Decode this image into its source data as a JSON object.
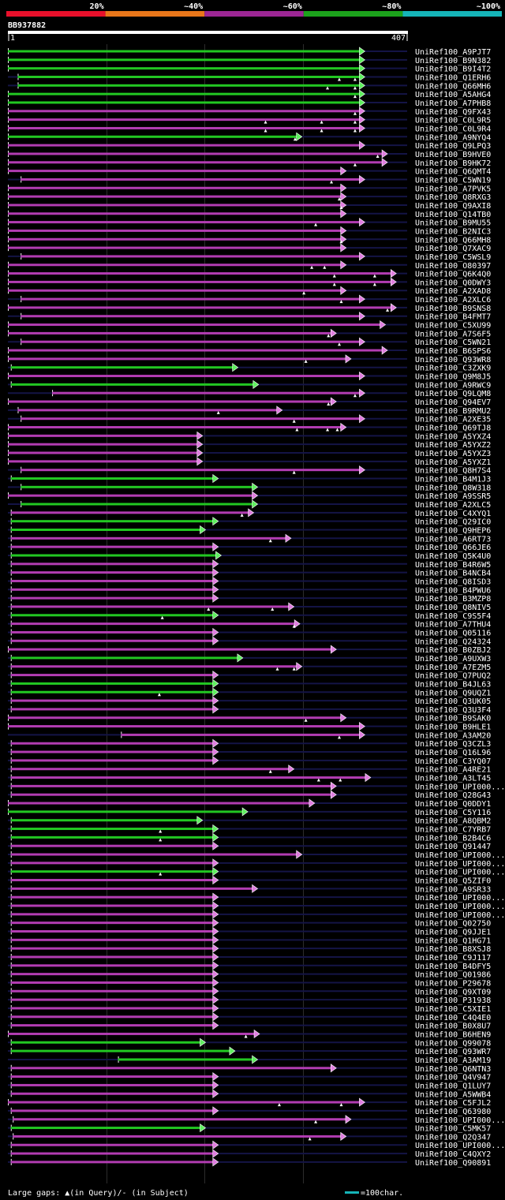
{
  "chart_data": {
    "type": "alignment-overview",
    "query_id": "BB937882",
    "query_start": "1",
    "query_end": "407",
    "query_length": 407,
    "legend": {
      "bands": [
        {
          "label": "20%",
          "color": "#e8102b"
        },
        {
          "label": "~40%",
          "color": "#e8761a"
        },
        {
          "label": "~60%",
          "color": "#9c2694"
        },
        {
          "label": "~80%",
          "color": "#1ca21c"
        },
        {
          "label": "~100%",
          "color": "#15b4b8"
        }
      ],
      "gap_note": "Large gaps: ▲(in Query)/- (in Subject)",
      "scale_note": "=100char.",
      "scale_color": "#15b4b8"
    },
    "hits": [
      {
        "id": "UniRef100_A9PJT7",
        "start": 1,
        "end": 364,
        "tier": "green",
        "gaps": []
      },
      {
        "id": "UniRef100_B9N382",
        "start": 1,
        "end": 364,
        "tier": "green",
        "gaps": []
      },
      {
        "id": "UniRef100_B9I4T2",
        "start": 1,
        "end": 364,
        "tier": "green",
        "gaps": []
      },
      {
        "id": "UniRef100_Q1ERH6",
        "start": 11,
        "end": 364,
        "tier": "green",
        "gaps": [
          338,
          354
        ]
      },
      {
        "id": "UniRef100_Q66MH6",
        "start": 11,
        "end": 364,
        "tier": "green",
        "gaps": [
          326,
          354
        ]
      },
      {
        "id": "UniRef100_A5AHG4",
        "start": 1,
        "end": 364,
        "tier": "green",
        "gaps": [
          354
        ]
      },
      {
        "id": "UniRef100_A7PHB8",
        "start": 1,
        "end": 364,
        "tier": "green",
        "gaps": []
      },
      {
        "id": "UniRef100_Q9FX43",
        "start": 1,
        "end": 364,
        "tier": "purple",
        "gaps": [
          354
        ]
      },
      {
        "id": "UniRef100_C0L9R5",
        "start": 1,
        "end": 364,
        "tier": "purple",
        "gaps": [
          263,
          320,
          354
        ]
      },
      {
        "id": "UniRef100_C0L9R4",
        "start": 1,
        "end": 364,
        "tier": "purple",
        "gaps": [
          263,
          320,
          354
        ]
      },
      {
        "id": "UniRef100_A9NYQ4",
        "start": 1,
        "end": 300,
        "tier": "green",
        "gaps": [
          293
        ]
      },
      {
        "id": "UniRef100_Q9LPQ3",
        "start": 1,
        "end": 364,
        "tier": "purple",
        "gaps": []
      },
      {
        "id": "UniRef100_B9HVE0",
        "start": 1,
        "end": 387,
        "tier": "purple",
        "gaps": [
          377
        ]
      },
      {
        "id": "UniRef100_B9HK72",
        "start": 1,
        "end": 387,
        "tier": "purple",
        "gaps": [
          354
        ]
      },
      {
        "id": "UniRef100_Q6QMT4",
        "start": 1,
        "end": 345,
        "tier": "purple",
        "gaps": []
      },
      {
        "id": "UniRef100_C5WN19",
        "start": 14,
        "end": 364,
        "tier": "purple",
        "gaps": [
          330
        ]
      },
      {
        "id": "UniRef100_A7PVK5",
        "start": 1,
        "end": 345,
        "tier": "purple",
        "gaps": []
      },
      {
        "id": "UniRef100_Q8RXG3",
        "start": 1,
        "end": 345,
        "tier": "purple",
        "gaps": [
          338
        ]
      },
      {
        "id": "UniRef100_Q9AXI8",
        "start": 1,
        "end": 345,
        "tier": "purple",
        "gaps": [
          340
        ]
      },
      {
        "id": "UniRef100_Q14TB0",
        "start": 1,
        "end": 345,
        "tier": "purple",
        "gaps": []
      },
      {
        "id": "UniRef100_B9MU55",
        "start": 1,
        "end": 364,
        "tier": "purple",
        "gaps": [
          314
        ]
      },
      {
        "id": "UniRef100_B2NIC3",
        "start": 1,
        "end": 345,
        "tier": "purple",
        "gaps": []
      },
      {
        "id": "UniRef100_Q66MH8",
        "start": 1,
        "end": 345,
        "tier": "purple",
        "gaps": [
          340
        ]
      },
      {
        "id": "UniRef100_Q7XAC9",
        "start": 1,
        "end": 345,
        "tier": "purple",
        "gaps": []
      },
      {
        "id": "UniRef100_C5WSL9",
        "start": 14,
        "end": 364,
        "tier": "purple",
        "gaps": []
      },
      {
        "id": "UniRef100_O80397",
        "start": 1,
        "end": 345,
        "tier": "purple",
        "gaps": [
          310,
          323
        ]
      },
      {
        "id": "UniRef100_Q6K4Q0",
        "start": 1,
        "end": 396,
        "tier": "purple",
        "gaps": [
          333,
          374
        ]
      },
      {
        "id": "UniRef100_Q0DWY3",
        "start": 1,
        "end": 396,
        "tier": "purple",
        "gaps": [
          333,
          374
        ]
      },
      {
        "id": "UniRef100_A2XAD8",
        "start": 1,
        "end": 345,
        "tier": "purple",
        "gaps": [
          302
        ]
      },
      {
        "id": "UniRef100_A2XLC6",
        "start": 14,
        "end": 364,
        "tier": "purple",
        "gaps": [
          340
        ]
      },
      {
        "id": "UniRef100_B9SNS8",
        "start": 1,
        "end": 396,
        "tier": "purple",
        "gaps": [
          387
        ]
      },
      {
        "id": "UniRef100_B4FMT7",
        "start": 14,
        "end": 364,
        "tier": "purple",
        "gaps": []
      },
      {
        "id": "UniRef100_C5XU99",
        "start": 1,
        "end": 385,
        "tier": "purple",
        "gaps": []
      },
      {
        "id": "UniRef100_A7S6F5",
        "start": 1,
        "end": 335,
        "tier": "purple",
        "gaps": [
          327
        ]
      },
      {
        "id": "UniRef100_C5WN21",
        "start": 14,
        "end": 364,
        "tier": "purple",
        "gaps": [
          338
        ]
      },
      {
        "id": "UniRef100_B6SPS6",
        "start": 1,
        "end": 387,
        "tier": "purple",
        "gaps": []
      },
      {
        "id": "UniRef100_Q93WR8",
        "start": 1,
        "end": 350,
        "tier": "purple",
        "gaps": [
          304
        ]
      },
      {
        "id": "UniRef100_C3ZXK9",
        "start": 4,
        "end": 235,
        "tier": "green",
        "gaps": []
      },
      {
        "id": "UniRef100_Q9M8J5",
        "start": 1,
        "end": 364,
        "tier": "purple",
        "gaps": []
      },
      {
        "id": "UniRef100_A9RWC9",
        "start": 4,
        "end": 256,
        "tier": "green",
        "gaps": []
      },
      {
        "id": "UniRef100_Q9LQM8",
        "start": 46,
        "end": 364,
        "tier": "purple",
        "gaps": [
          354
        ]
      },
      {
        "id": "UniRef100_Q94EV7",
        "start": 1,
        "end": 335,
        "tier": "purple",
        "gaps": [
          327
        ]
      },
      {
        "id": "UniRef100_B9RMU2",
        "start": 11,
        "end": 280,
        "tier": "purple",
        "gaps": [
          215
        ]
      },
      {
        "id": "UniRef100_A2XE35",
        "start": 14,
        "end": 364,
        "tier": "purple",
        "gaps": [
          292
        ]
      },
      {
        "id": "UniRef100_Q69TJ8",
        "start": 1,
        "end": 345,
        "tier": "purple",
        "gaps": [
          295,
          326,
          336
        ]
      },
      {
        "id": "UniRef100_A5YXZ4",
        "start": 1,
        "end": 199,
        "tier": "purple",
        "gaps": []
      },
      {
        "id": "UniRef100_A5YXZ2",
        "start": 1,
        "end": 199,
        "tier": "purple",
        "gaps": []
      },
      {
        "id": "UniRef100_A5YXZ3",
        "start": 1,
        "end": 199,
        "tier": "purple",
        "gaps": []
      },
      {
        "id": "UniRef100_A5YXZ1",
        "start": 1,
        "end": 199,
        "tier": "purple",
        "gaps": []
      },
      {
        "id": "UniRef100_Q8H7S4",
        "start": 14,
        "end": 364,
        "tier": "purple",
        "gaps": [
          292
        ]
      },
      {
        "id": "UniRef100_B4M1J3",
        "start": 4,
        "end": 215,
        "tier": "green",
        "gaps": []
      },
      {
        "id": "UniRef100_Q8W318",
        "start": 14,
        "end": 255,
        "tier": "green",
        "gaps": []
      },
      {
        "id": "UniRef100_A9SSR5",
        "start": 1,
        "end": 255,
        "tier": "purple",
        "gaps": []
      },
      {
        "id": "UniRef100_A2XLC5",
        "start": 14,
        "end": 255,
        "tier": "green",
        "gaps": []
      },
      {
        "id": "UniRef100_C4XYQ1",
        "start": 4,
        "end": 251,
        "tier": "purple",
        "gaps": [
          239
        ]
      },
      {
        "id": "UniRef100_Q29IC0",
        "start": 4,
        "end": 215,
        "tier": "green",
        "gaps": []
      },
      {
        "id": "UniRef100_Q9HEP6",
        "start": 4,
        "end": 202,
        "tier": "green",
        "gaps": []
      },
      {
        "id": "UniRef100_A6RT73",
        "start": 4,
        "end": 289,
        "tier": "purple",
        "gaps": [
          268
        ]
      },
      {
        "id": "UniRef100_Q66JE6",
        "start": 4,
        "end": 215,
        "tier": "purple",
        "gaps": []
      },
      {
        "id": "UniRef100_Q5K4U0",
        "start": 4,
        "end": 218,
        "tier": "green",
        "gaps": []
      },
      {
        "id": "UniRef100_B4R6W5",
        "start": 4,
        "end": 215,
        "tier": "purple",
        "gaps": []
      },
      {
        "id": "UniRef100_B4NCB4",
        "start": 4,
        "end": 215,
        "tier": "purple",
        "gaps": []
      },
      {
        "id": "UniRef100_Q8ISD3",
        "start": 4,
        "end": 215,
        "tier": "purple",
        "gaps": []
      },
      {
        "id": "UniRef100_B4PWU6",
        "start": 4,
        "end": 215,
        "tier": "purple",
        "gaps": []
      },
      {
        "id": "UniRef100_B3MZP8",
        "start": 4,
        "end": 215,
        "tier": "purple",
        "gaps": []
      },
      {
        "id": "UniRef100_Q8NIV5",
        "start": 4,
        "end": 292,
        "tier": "purple",
        "gaps": [
          205,
          270
        ]
      },
      {
        "id": "UniRef100_C9S5F4",
        "start": 4,
        "end": 215,
        "tier": "green",
        "gaps": [
          158
        ]
      },
      {
        "id": "UniRef100_A7THU4",
        "start": 4,
        "end": 298,
        "tier": "purple",
        "gaps": [
          292
        ]
      },
      {
        "id": "UniRef100_Q05116",
        "start": 4,
        "end": 215,
        "tier": "purple",
        "gaps": []
      },
      {
        "id": "UniRef100_Q24324",
        "start": 4,
        "end": 215,
        "tier": "purple",
        "gaps": []
      },
      {
        "id": "UniRef100_B0ZBJ2",
        "start": 1,
        "end": 335,
        "tier": "purple",
        "gaps": []
      },
      {
        "id": "UniRef100_A9UXW3",
        "start": 4,
        "end": 240,
        "tier": "green",
        "gaps": []
      },
      {
        "id": "UniRef100_A7EZM5",
        "start": 4,
        "end": 300,
        "tier": "purple",
        "gaps": [
          275,
          292
        ]
      },
      {
        "id": "UniRef100_Q7PUQ2",
        "start": 4,
        "end": 215,
        "tier": "purple",
        "gaps": []
      },
      {
        "id": "UniRef100_B4JL63",
        "start": 4,
        "end": 215,
        "tier": "green",
        "gaps": []
      },
      {
        "id": "UniRef100_Q9UQZ1",
        "start": 4,
        "end": 215,
        "tier": "green",
        "gaps": [
          155
        ]
      },
      {
        "id": "UniRef100_Q3UK05",
        "start": 4,
        "end": 215,
        "tier": "purple",
        "gaps": []
      },
      {
        "id": "UniRef100_Q3U3F4",
        "start": 4,
        "end": 215,
        "tier": "purple",
        "gaps": []
      },
      {
        "id": "UniRef100_B9SAK0",
        "start": 1,
        "end": 345,
        "tier": "purple",
        "gaps": [
          304
        ]
      },
      {
        "id": "UniRef100_B9HLE1",
        "start": 1,
        "end": 364,
        "tier": "purple",
        "gaps": []
      },
      {
        "id": "UniRef100_A3AM20",
        "start": 116,
        "end": 364,
        "tier": "purple",
        "gaps": [
          338
        ]
      },
      {
        "id": "UniRef100_Q3CZL3",
        "start": 4,
        "end": 215,
        "tier": "purple",
        "gaps": []
      },
      {
        "id": "UniRef100_Q16L96",
        "start": 4,
        "end": 215,
        "tier": "purple",
        "gaps": []
      },
      {
        "id": "UniRef100_C3YQ07",
        "start": 4,
        "end": 215,
        "tier": "purple",
        "gaps": []
      },
      {
        "id": "UniRef100_A4RE21",
        "start": 4,
        "end": 292,
        "tier": "purple",
        "gaps": [
          268
        ]
      },
      {
        "id": "UniRef100_A3LT45",
        "start": 4,
        "end": 370,
        "tier": "purple",
        "gaps": [
          317,
          339
        ]
      },
      {
        "id": "UniRef100_UPI000...",
        "start": 4,
        "end": 335,
        "tier": "purple",
        "gaps": []
      },
      {
        "id": "UniRef100_Q28G43",
        "start": 4,
        "end": 335,
        "tier": "purple",
        "gaps": []
      },
      {
        "id": "UniRef100_Q0DDY1",
        "start": 1,
        "end": 313,
        "tier": "purple",
        "gaps": []
      },
      {
        "id": "UniRef100_C5Y116",
        "start": 1,
        "end": 245,
        "tier": "green",
        "gaps": []
      },
      {
        "id": "UniRef100_A8QBM2",
        "start": 4,
        "end": 199,
        "tier": "green",
        "gaps": []
      },
      {
        "id": "UniRef100_C7YRB7",
        "start": 4,
        "end": 215,
        "tier": "green",
        "gaps": [
          156
        ]
      },
      {
        "id": "UniRef100_B2B4C6",
        "start": 4,
        "end": 215,
        "tier": "green",
        "gaps": [
          156
        ]
      },
      {
        "id": "UniRef100_Q91447",
        "start": 4,
        "end": 215,
        "tier": "purple",
        "gaps": []
      },
      {
        "id": "UniRef100_UPI000...",
        "start": 4,
        "end": 300,
        "tier": "purple",
        "gaps": []
      },
      {
        "id": "UniRef100_UPI000...",
        "start": 4,
        "end": 215,
        "tier": "purple",
        "gaps": []
      },
      {
        "id": "UniRef100_UPI000...",
        "start": 4,
        "end": 215,
        "tier": "green",
        "gaps": [
          156
        ]
      },
      {
        "id": "UniRef100_Q5ZIF0",
        "start": 4,
        "end": 215,
        "tier": "purple",
        "gaps": []
      },
      {
        "id": "UniRef100_A9SR33",
        "start": 4,
        "end": 255,
        "tier": "purple",
        "gaps": []
      },
      {
        "id": "UniRef100_UPI000...",
        "start": 4,
        "end": 215,
        "tier": "purple",
        "gaps": []
      },
      {
        "id": "UniRef100_UPI000...",
        "start": 4,
        "end": 215,
        "tier": "purple",
        "gaps": []
      },
      {
        "id": "UniRef100_UPI000...",
        "start": 4,
        "end": 215,
        "tier": "purple",
        "gaps": []
      },
      {
        "id": "UniRef100_Q02750",
        "start": 4,
        "end": 215,
        "tier": "purple",
        "gaps": []
      },
      {
        "id": "UniRef100_Q9JJE1",
        "start": 4,
        "end": 215,
        "tier": "purple",
        "gaps": []
      },
      {
        "id": "UniRef100_Q1HG71",
        "start": 4,
        "end": 215,
        "tier": "purple",
        "gaps": []
      },
      {
        "id": "UniRef100_B8XSJ8",
        "start": 4,
        "end": 215,
        "tier": "purple",
        "gaps": []
      },
      {
        "id": "UniRef100_C9J117",
        "start": 4,
        "end": 215,
        "tier": "purple",
        "gaps": []
      },
      {
        "id": "UniRef100_B4DFY5",
        "start": 4,
        "end": 215,
        "tier": "purple",
        "gaps": []
      },
      {
        "id": "UniRef100_Q01986",
        "start": 4,
        "end": 215,
        "tier": "purple",
        "gaps": []
      },
      {
        "id": "UniRef100_P29678",
        "start": 4,
        "end": 215,
        "tier": "purple",
        "gaps": []
      },
      {
        "id": "UniRef100_Q9XT09",
        "start": 4,
        "end": 215,
        "tier": "purple",
        "gaps": []
      },
      {
        "id": "UniRef100_P31938",
        "start": 4,
        "end": 215,
        "tier": "purple",
        "gaps": []
      },
      {
        "id": "UniRef100_C5XIE1",
        "start": 4,
        "end": 215,
        "tier": "purple",
        "gaps": []
      },
      {
        "id": "UniRef100_C4Q4E0",
        "start": 4,
        "end": 215,
        "tier": "purple",
        "gaps": []
      },
      {
        "id": "UniRef100_B0X8U7",
        "start": 4,
        "end": 215,
        "tier": "purple",
        "gaps": []
      },
      {
        "id": "UniRef100_B6HEN9",
        "start": 1,
        "end": 257,
        "tier": "purple",
        "gaps": [
          243
        ]
      },
      {
        "id": "UniRef100_Q99078",
        "start": 4,
        "end": 202,
        "tier": "green",
        "gaps": []
      },
      {
        "id": "UniRef100_Q93WR7",
        "start": 4,
        "end": 232,
        "tier": "green",
        "gaps": []
      },
      {
        "id": "UniRef100_A3AM19",
        "start": 113,
        "end": 255,
        "tier": "green",
        "gaps": []
      },
      {
        "id": "UniRef100_Q6NTN3",
        "start": 4,
        "end": 335,
        "tier": "purple",
        "gaps": []
      },
      {
        "id": "UniRef100_Q4V947",
        "start": 4,
        "end": 215,
        "tier": "purple",
        "gaps": []
      },
      {
        "id": "UniRef100_Q1LUY7",
        "start": 4,
        "end": 215,
        "tier": "purple",
        "gaps": []
      },
      {
        "id": "UniRef100_A5WWB4",
        "start": 4,
        "end": 215,
        "tier": "purple",
        "gaps": []
      },
      {
        "id": "UniRef100_C5FJL2",
        "start": 1,
        "end": 364,
        "tier": "purple",
        "gaps": [
          277,
          340
        ]
      },
      {
        "id": "UniRef100_Q63980",
        "start": 4,
        "end": 215,
        "tier": "purple",
        "gaps": []
      },
      {
        "id": "UniRef100_UPI000...",
        "start": 6,
        "end": 350,
        "tier": "purple",
        "gaps": [
          314
        ]
      },
      {
        "id": "UniRef100_C5MK57",
        "start": 4,
        "end": 202,
        "tier": "green",
        "gaps": []
      },
      {
        "id": "UniRef100_Q2Q347",
        "start": 6,
        "end": 345,
        "tier": "purple",
        "gaps": [
          308
        ]
      },
      {
        "id": "UniRef100_UPI000...",
        "start": 4,
        "end": 215,
        "tier": "purple",
        "gaps": []
      },
      {
        "id": "UniRef100_C4QXY2",
        "start": 4,
        "end": 215,
        "tier": "purple",
        "gaps": []
      },
      {
        "id": "UniRef100_Q90891",
        "start": 4,
        "end": 215,
        "tier": "purple",
        "gaps": []
      }
    ]
  }
}
